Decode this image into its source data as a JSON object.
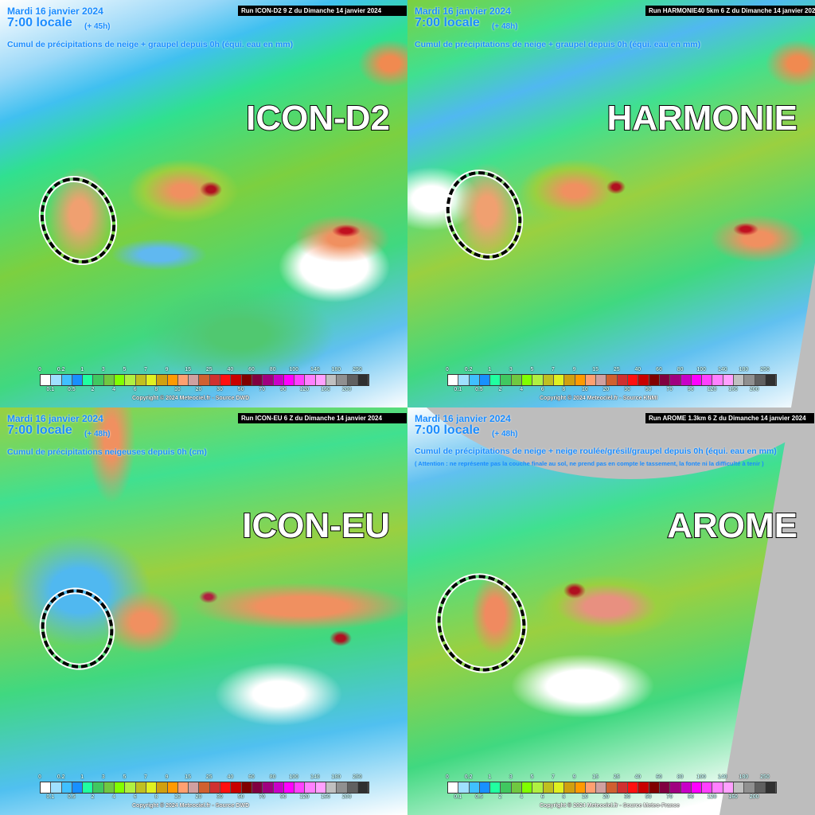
{
  "panels": [
    {
      "model_label": "ICON-D2",
      "date": "Mardi 16 janvier 2024",
      "time": "7:00 locale",
      "lead": "(+ 45h)",
      "run": "Run ICON-D2 9 Z du Dimanche 14 janvier 2024",
      "variable": "Cumul de précipitations de neige + graupel depuis 0h (équi. eau en mm)",
      "note": "",
      "copyright": "Copyright © 2024 Meteociel.fr - Source DWD"
    },
    {
      "model_label": "HARMONIE",
      "date": "Mardi 16 janvier 2024",
      "time": "7:00 locale",
      "lead": "(+ 48h)",
      "run": "Run HARMONIE40 5km 6 Z du Dimanche 14 janvier 2024",
      "variable": "Cumul de précipitations de neige + graupel depuis 0h (équi. eau en mm)",
      "note": "",
      "copyright": "Copyright © 2024 Meteociel.fr - Source KNMI"
    },
    {
      "model_label": "ICON-EU",
      "date": "Mardi 16 janvier 2024",
      "time": "7:00 locale",
      "lead": "(+ 48h)",
      "run": "Run ICON-EU 6 Z du Dimanche 14 janvier 2024",
      "variable": "Cumul de précipitations neigeuses depuis 0h (cm)",
      "note": "",
      "copyright": "Copyright © 2024 Meteociel.fr - Source DWD"
    },
    {
      "model_label": "AROME",
      "date": "Mardi 16 janvier 2024",
      "time": "7:00 locale",
      "lead": "(+ 48h)",
      "run": "Run AROME 1.3km 6 Z du Dimanche 14 janvier 2024",
      "variable": "Cumul de précipitations de neige + neige roulée/grésil/graupel depuis 0h (équi. eau en mm)",
      "note": "( Attention : ne représente pas la couche finale au sol, ne prend pas en compte le tassement, la fonte ni la difficulté à tenir )",
      "copyright": "Copyright © 2024 Meteociel.fr - Source Meteo-France"
    }
  ],
  "legend": {
    "labels_top": [
      "0",
      "0.2",
      "1",
      "3",
      "5",
      "7",
      "9",
      "15",
      "25",
      "40",
      "60",
      "80",
      "100",
      "140",
      "180",
      "250"
    ],
    "labels_bottom": [
      "0.1",
      "0.5",
      "2",
      "4",
      "6",
      "8",
      "10",
      "20",
      "30",
      "50",
      "70",
      "90",
      "120",
      "160",
      "200"
    ],
    "colors": [
      "#ffffff",
      "#a0e0ff",
      "#40c0ff",
      "#1890ff",
      "#20ffa0",
      "#40c860",
      "#70c840",
      "#80ff00",
      "#b0f040",
      "#c0c020",
      "#e0f020",
      "#d0a010",
      "#ff9a00",
      "#ffa070",
      "#d0a0a0",
      "#d06030",
      "#d03030",
      "#ff1010",
      "#c80000",
      "#800000",
      "#800040",
      "#a00080",
      "#c800c8",
      "#ff00ff",
      "#ff40ff",
      "#ff80ff",
      "#ffa0ff",
      "#c0c0c0",
      "#909090",
      "#606060",
      "#303030"
    ]
  }
}
